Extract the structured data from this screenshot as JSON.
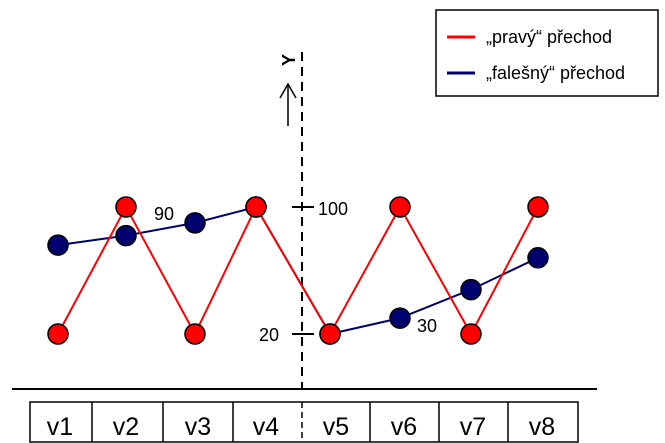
{
  "legend": {
    "items": [
      {
        "label": "„pravý“ přechod",
        "color": "#ff0000"
      },
      {
        "label": "„falešný“ přechod",
        "color": "#00006e"
      }
    ]
  },
  "axis": {
    "label": "Y",
    "ticks": [
      {
        "value": 100,
        "label": "100"
      },
      {
        "value": 20,
        "label": "20"
      }
    ]
  },
  "annotations": [
    {
      "text": "90"
    },
    {
      "text": "30"
    }
  ],
  "vertices": [
    "v1",
    "v2",
    "v3",
    "v4",
    "v5",
    "v6",
    "v7",
    "v8"
  ],
  "chart_data": {
    "type": "line",
    "categories": [
      "v1",
      "v2",
      "v3",
      "v4",
      "v5",
      "v6",
      "v7",
      "v8"
    ],
    "series": [
      {
        "name": "„pravý“ přechod",
        "color": "#ff0000",
        "values": [
          20,
          100,
          20,
          100,
          20,
          100,
          20,
          100
        ]
      },
      {
        "name": "„falešný“ přechod",
        "color": "#00006e",
        "values": [
          76,
          82,
          90,
          100,
          20,
          30,
          48,
          68
        ]
      }
    ],
    "ylim": [
      20,
      100
    ]
  }
}
